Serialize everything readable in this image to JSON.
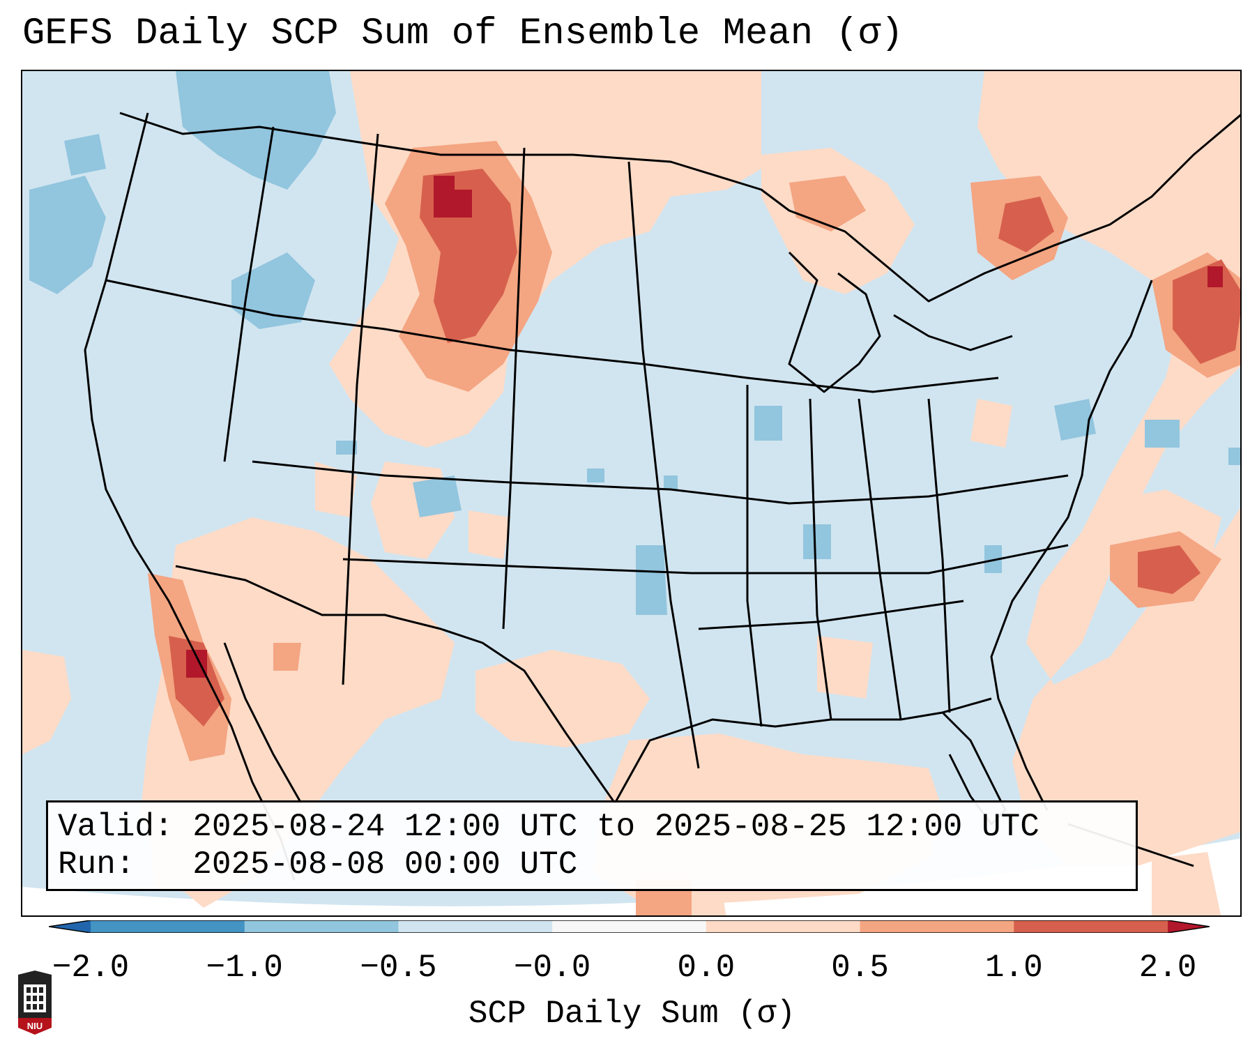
{
  "title": "GEFS Daily SCP Sum of Ensemble Mean (σ)",
  "info": {
    "valid": "Valid: 2025-08-24 12:00 UTC to 2025-08-25 12:00 UTC",
    "run": "Run:   2025-08-08 00:00 UTC"
  },
  "colorbar": {
    "label": "SCP Daily Sum (σ)",
    "ticks": [
      "−2.0",
      "−1.0",
      "−0.5",
      "−0.0",
      "0.0",
      "0.5",
      "1.0",
      "2.0"
    ],
    "colors": [
      "#2166ac",
      "#4393c3",
      "#92c5de",
      "#d1e5f0",
      "#f7f7f7",
      "#fddbc7",
      "#f4a582",
      "#d6604d",
      "#b2182b"
    ],
    "extend": "both"
  },
  "logo": {
    "text": "NIU",
    "colors": {
      "shield": "#b5121b",
      "tower": "#222222"
    }
  },
  "map": {
    "region": "CONUS",
    "background_color": "#d1e5f0",
    "anomaly_regions": [
      {
        "name": "northern-plains-maximum",
        "level": "1.0 to 2.0"
      },
      {
        "name": "northern-rockies",
        "level": "0.5 to 1.0"
      },
      {
        "name": "new-england-maximum",
        "level": "1.0 to 2.0"
      },
      {
        "name": "ontario-quebec",
        "level": "0.5 to 1.0"
      },
      {
        "name": "atlantic-offshore",
        "level": "0.5 to 1.0"
      },
      {
        "name": "baja-california",
        "level": "1.0 to 2.0"
      },
      {
        "name": "gulf-of-mexico",
        "level": "0.0 to 0.5"
      },
      {
        "name": "pacific-northwest",
        "level": "-1.0 to -0.5"
      }
    ]
  }
}
